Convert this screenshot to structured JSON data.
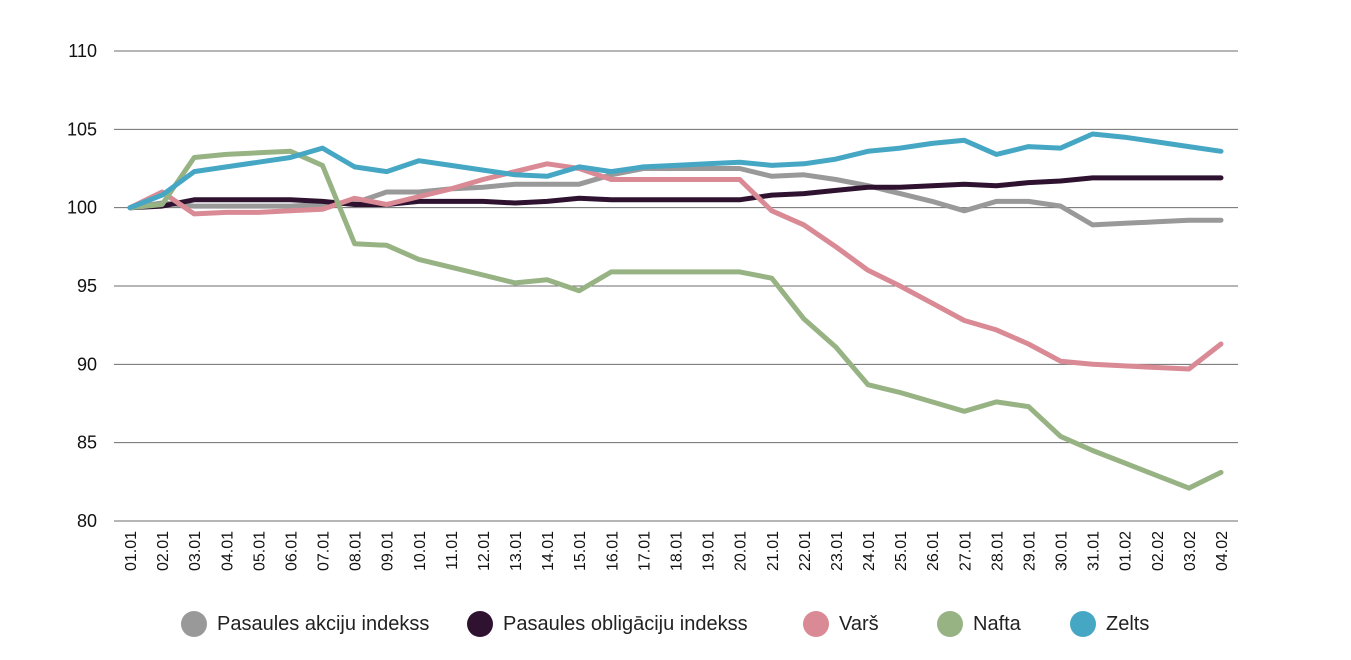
{
  "chart_data": {
    "type": "line",
    "ylim": [
      80,
      110
    ],
    "yticks": [
      "80",
      "85",
      "90",
      "95",
      "100",
      "105",
      "110"
    ],
    "categories": [
      "01.01",
      "02.01",
      "03.01",
      "04.01",
      "05.01",
      "06.01",
      "07.01",
      "08.01",
      "09.01",
      "10.01",
      "11.01",
      "12.01",
      "13.01",
      "14.01",
      "15.01",
      "16.01",
      "17.01",
      "18.01",
      "19.01",
      "20.01",
      "21.01",
      "22.01",
      "23.01",
      "24.01",
      "25.01",
      "26.01",
      "27.01",
      "28.01",
      "29.01",
      "30.01",
      "31.01",
      "01.02",
      "02.02",
      "03.02",
      "04.02"
    ],
    "grid": true,
    "legend_position": "bottom",
    "series": [
      {
        "name": "Pasaules akciju indekss",
        "color": "#999999",
        "values": [
          100,
          100.3,
          100.1,
          100.1,
          100.1,
          100.1,
          100.2,
          100.3,
          101.0,
          101.0,
          101.2,
          101.3,
          101.5,
          101.5,
          101.5,
          102.1,
          102.5,
          102.5,
          102.5,
          102.5,
          102.0,
          102.1,
          101.8,
          101.4,
          100.9,
          100.4,
          99.8,
          100.4,
          100.4,
          100.1,
          98.9,
          99.0,
          99.1,
          99.2,
          99.2
        ]
      },
      {
        "name": "Pasaules obligāciju indekss",
        "color": "#2e1230",
        "values": [
          100,
          100.1,
          100.5,
          100.5,
          100.5,
          100.5,
          100.4,
          100.2,
          100.2,
          100.4,
          100.4,
          100.4,
          100.3,
          100.4,
          100.6,
          100.5,
          100.5,
          100.5,
          100.5,
          100.5,
          100.8,
          100.9,
          101.1,
          101.3,
          101.3,
          101.4,
          101.5,
          101.4,
          101.6,
          101.7,
          101.9,
          101.9,
          101.9,
          101.9,
          101.9
        ]
      },
      {
        "name": "Varš",
        "color": "#d98a95",
        "values": [
          100,
          101.0,
          99.6,
          99.7,
          99.7,
          99.8,
          99.9,
          100.6,
          100.2,
          100.7,
          101.2,
          101.8,
          102.3,
          102.8,
          102.5,
          101.8,
          101.8,
          101.8,
          101.8,
          101.8,
          99.8,
          98.9,
          97.5,
          96.0,
          95.0,
          93.9,
          92.8,
          92.2,
          91.3,
          90.2,
          90.0,
          89.9,
          89.8,
          89.7,
          91.3
        ]
      },
      {
        "name": "Nafta",
        "color": "#97b384",
        "values": [
          100,
          100.2,
          103.2,
          103.4,
          103.5,
          103.6,
          102.7,
          97.7,
          97.6,
          96.7,
          96.2,
          95.7,
          95.2,
          95.4,
          94.7,
          95.9,
          95.9,
          95.9,
          95.9,
          95.9,
          95.5,
          92.9,
          91.1,
          88.7,
          88.2,
          87.6,
          87.0,
          87.6,
          87.3,
          85.4,
          84.5,
          83.7,
          82.9,
          82.1,
          83.1
        ]
      },
      {
        "name": "Zelts",
        "color": "#45a7c4",
        "values": [
          100,
          100.8,
          102.3,
          102.6,
          102.9,
          103.2,
          103.8,
          102.6,
          102.3,
          103.0,
          102.7,
          102.4,
          102.1,
          102.0,
          102.6,
          102.3,
          102.6,
          102.7,
          102.8,
          102.9,
          102.7,
          102.8,
          103.1,
          103.6,
          103.8,
          104.1,
          104.3,
          103.4,
          103.9,
          103.8,
          104.7,
          104.5,
          104.2,
          103.9,
          103.6
        ]
      }
    ]
  }
}
